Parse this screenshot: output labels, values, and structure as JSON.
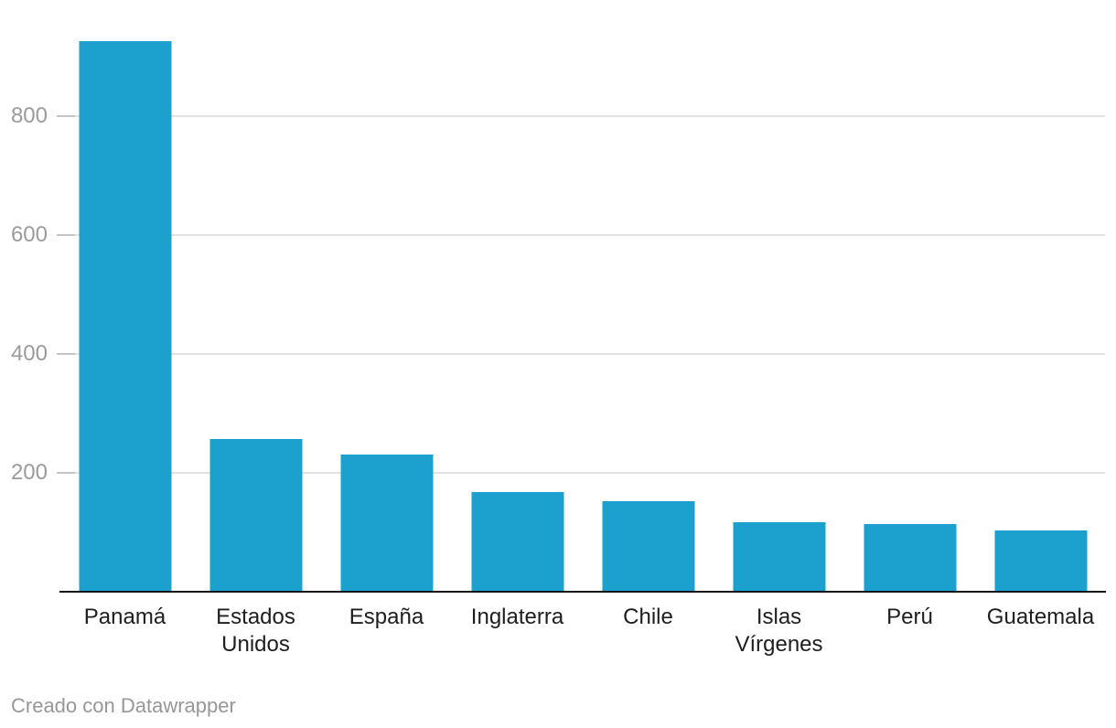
{
  "chart_data": {
    "type": "bar",
    "title": "",
    "categories": [
      "Panamá",
      "Estados Unidos",
      "España",
      "Inglaterra",
      "Chile",
      "Islas Vírgenes",
      "Perú",
      "Guatemala"
    ],
    "values": [
      925,
      256,
      229,
      166,
      151,
      116,
      112,
      101
    ],
    "xlabel": "",
    "ylabel": "",
    "yticks": [
      200,
      400,
      600,
      800
    ],
    "ylim": [
      0,
      995
    ],
    "grid": true,
    "legend": "none",
    "bar_color": "#1ca0cd",
    "gridline_color": "#e2e2e2",
    "tick_stub_color": "#c4c4c4",
    "axis_line_color": "#141414",
    "ytick_label_color": "#9b9b9b",
    "xlabel_color": "#1e1e1e"
  },
  "footer": {
    "text": "Creado con Datawrapper",
    "color": "#979797"
  }
}
